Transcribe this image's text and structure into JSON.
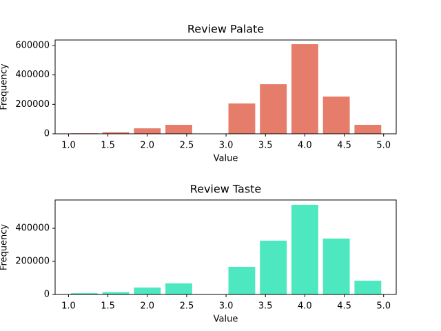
{
  "chart_data": [
    {
      "type": "histogram",
      "title": "Review Palate",
      "xlabel": "Value",
      "ylabel": "Frequency",
      "color": "#e67c6a",
      "bins": [
        1.0,
        1.4,
        1.8,
        2.2,
        2.6,
        3.0,
        3.4,
        3.8,
        4.2,
        4.6,
        5.0
      ],
      "values": [
        4000,
        10000,
        37000,
        61000,
        0,
        206000,
        337000,
        609000,
        253000,
        61000
      ],
      "xlim": [
        0.83,
        5.16
      ],
      "ylim": [
        0,
        637500
      ],
      "xticks": [
        {
          "value": 1,
          "label": "1.0"
        },
        {
          "value": 1.5,
          "label": "1.5"
        },
        {
          "value": 2,
          "label": "2.0"
        },
        {
          "value": 2.5,
          "label": "2.5"
        },
        {
          "value": 3,
          "label": "3.0"
        },
        {
          "value": 3.5,
          "label": "3.5"
        },
        {
          "value": 4,
          "label": "4.0"
        },
        {
          "value": 4.5,
          "label": "4.5"
        },
        {
          "value": 5,
          "label": "5.0"
        }
      ],
      "yticks": [
        0,
        200000,
        400000,
        600000
      ]
    },
    {
      "type": "histogram",
      "title": "Review Taste",
      "xlabel": "Value",
      "ylabel": "Frequency",
      "color": "#4de8c0",
      "bins": [
        1.0,
        1.4,
        1.8,
        2.2,
        2.6,
        3.0,
        3.4,
        3.8,
        4.2,
        4.6,
        5.0
      ],
      "values": [
        8000,
        14000,
        42000,
        67000,
        0,
        167000,
        325000,
        542000,
        338000,
        83000
      ],
      "xlim": [
        0.83,
        5.16
      ],
      "ylim": [
        0,
        571000
      ],
      "xticks": [
        {
          "value": 1,
          "label": "1.0"
        },
        {
          "value": 1.5,
          "label": "1.5"
        },
        {
          "value": 2,
          "label": "2.0"
        },
        {
          "value": 2.5,
          "label": "2.5"
        },
        {
          "value": 3,
          "label": "3.0"
        },
        {
          "value": 3.5,
          "label": "3.5"
        },
        {
          "value": 4,
          "label": "4.0"
        },
        {
          "value": 4.5,
          "label": "4.5"
        },
        {
          "value": 5,
          "label": "5.0"
        }
      ],
      "yticks": [
        0,
        200000,
        400000
      ]
    }
  ]
}
